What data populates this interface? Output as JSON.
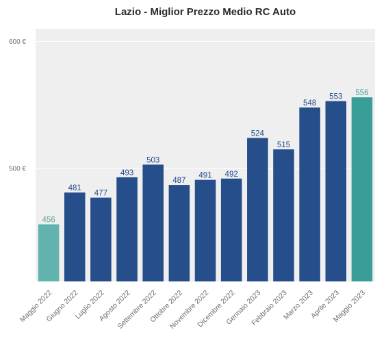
{
  "chart_data": {
    "type": "bar",
    "title": "Lazio - Miglior Prezzo Medio RC Auto",
    "xlabel": "",
    "ylabel": "",
    "categories": [
      "Maggio 2022",
      "Giugno 2022",
      "Luglio 2022",
      "Agosto 2022",
      "Settembre 2022",
      "Ottobre 2022",
      "Novembre 2022",
      "Dicembre 2022",
      "Gennaio 2023",
      "Febbraio 2023",
      "Marzo 2023",
      "Aprile 2023",
      "Maggio 2023"
    ],
    "values": [
      456,
      481,
      477,
      493,
      503,
      487,
      491,
      492,
      524,
      515,
      548,
      553,
      556
    ],
    "value_labels": [
      "456",
      "481",
      "477",
      "493",
      "503",
      "487",
      "491",
      "492",
      "524",
      "515",
      "548",
      "553",
      "556"
    ],
    "ylim": [
      411,
      610
    ],
    "yticks": [
      500,
      600
    ],
    "ytick_labels": [
      "500 €",
      "600 €"
    ],
    "grid": true,
    "legend": "none",
    "background_color": "#efefef",
    "bar_color": "#264e8a",
    "first_bar_color": "#62b3ad",
    "last_bar_color": "#3a9e98",
    "label_color": "#1f4a8c",
    "first_label_color": "#5aa9a3",
    "last_label_color": "#3a9e98"
  }
}
